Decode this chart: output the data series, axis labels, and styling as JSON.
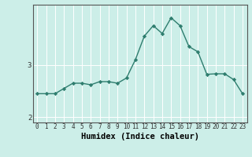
{
  "xlabel": "Humidex (Indice chaleur)",
  "x": [
    0,
    1,
    2,
    3,
    4,
    5,
    6,
    7,
    8,
    9,
    10,
    11,
    12,
    13,
    14,
    15,
    16,
    17,
    18,
    19,
    20,
    21,
    22,
    23
  ],
  "y": [
    2.45,
    2.45,
    2.45,
    2.55,
    2.65,
    2.65,
    2.62,
    2.68,
    2.68,
    2.65,
    2.75,
    3.1,
    3.55,
    3.75,
    3.6,
    3.9,
    3.75,
    3.35,
    3.25,
    2.82,
    2.83,
    2.83,
    2.72,
    2.45
  ],
  "line_color": "#2e7d6e",
  "marker": "D",
  "marker_size": 2.2,
  "line_width": 1.0,
  "bg_color": "#cceee8",
  "grid_color": "#ffffff",
  "axis_color": "#555555",
  "ylim": [
    1.9,
    4.15
  ],
  "yticks": [
    2,
    3
  ],
  "xlim": [
    -0.5,
    23.5
  ],
  "xtick_fontsize": 5.5,
  "ytick_fontsize": 6.5,
  "xlabel_fontsize": 7.5
}
